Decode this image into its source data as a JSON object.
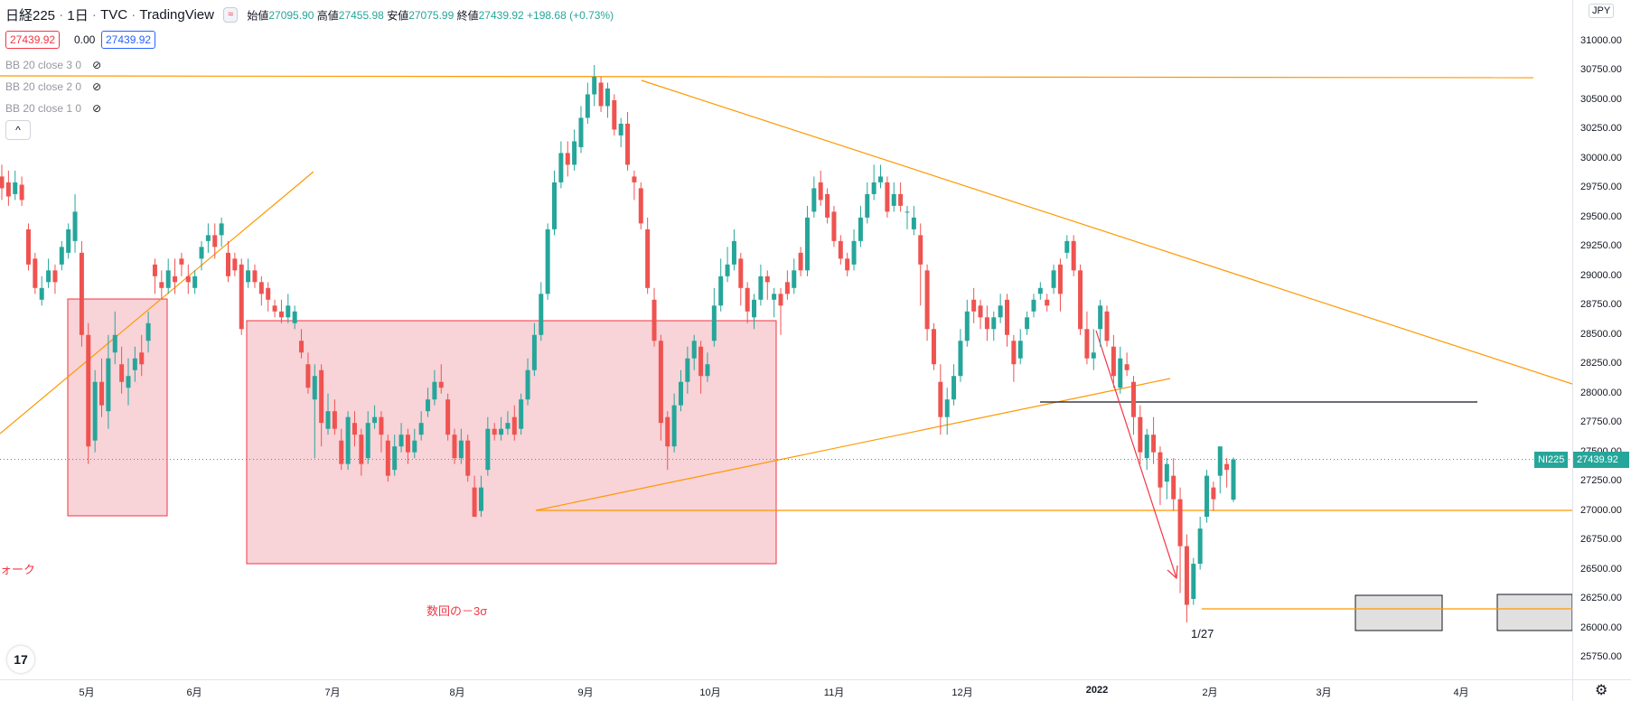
{
  "header": {
    "symbol": "日経225",
    "interval": "1日",
    "exchange": "TVC",
    "source": "TradingView",
    "badge": "≈",
    "open_label": "始値",
    "open": "27095.90",
    "high_label": "高値",
    "high": "27455.98",
    "low_label": "安値",
    "low": "27075.99",
    "close_label": "終値",
    "close": "27439.92",
    "change": "+198.68 (+0.73%)"
  },
  "values_row": {
    "left": "27439.92",
    "mid": "0.00",
    "right": "27439.92"
  },
  "indicators": [
    "BB 20 close 3 0",
    "BB 20 close 2 0",
    "BB 20 close 1 0"
  ],
  "collapse_icon": "^",
  "currency": "JPY",
  "price_tag": {
    "symbol": "NI225",
    "value": "27439.92"
  },
  "price_ticks": [
    "31000.00",
    "30750.00",
    "30500.00",
    "30250.00",
    "30000.00",
    "29750.00",
    "29500.00",
    "29250.00",
    "29000.00",
    "28750.00",
    "28500.00",
    "28250.00",
    "28000.00",
    "27750.00",
    "27500.00",
    "27250.00",
    "27000.00",
    "26750.00",
    "26500.00",
    "26250.00",
    "26000.00",
    "25750.00"
  ],
  "time_ticks": [
    "5月",
    "6月",
    "7月",
    "8月",
    "9月",
    "10月",
    "11月",
    "12月",
    "2022",
    "2月",
    "3月",
    "4月"
  ],
  "annotations": {
    "left_text": "ォーク",
    "sigma_text": "数回の－3σ",
    "date_text": "1/27"
  },
  "logo": "17",
  "colors": {
    "up": "#26a69a",
    "down": "#ef5350",
    "trend": "#ff9800",
    "zone_fill": "#f8d3d8",
    "zone_border": "#f23645"
  },
  "chart_data": {
    "type": "candlestick",
    "y_range": [
      25700,
      31150
    ],
    "candles": [
      [
        29850,
        29750,
        29950,
        29650
      ],
      [
        29800,
        29680,
        29900,
        29600
      ],
      [
        29700,
        29800,
        29900,
        29650
      ],
      [
        29780,
        29650,
        29850,
        29600
      ],
      [
        29400,
        29100,
        29450,
        29050
      ],
      [
        29150,
        28900,
        29200,
        28850
      ],
      [
        28800,
        28900,
        29000,
        28750
      ],
      [
        28950,
        29050,
        29150,
        28900
      ],
      [
        29050,
        28950,
        29100,
        28850
      ],
      [
        29100,
        29250,
        29300,
        29050
      ],
      [
        29200,
        29400,
        29450,
        29150
      ],
      [
        29300,
        29550,
        29700,
        29200
      ],
      [
        29200,
        28500,
        29300,
        28400
      ],
      [
        28500,
        27550,
        28600,
        27400
      ],
      [
        27600,
        28100,
        28200,
        27500
      ],
      [
        28100,
        27900,
        28300,
        27800
      ],
      [
        27850,
        28300,
        28500,
        27700
      ],
      [
        28350,
        28500,
        28700,
        28250
      ],
      [
        28250,
        28100,
        28400,
        28000
      ],
      [
        28050,
        28150,
        28300,
        27900
      ],
      [
        28200,
        28300,
        28400,
        28100
      ],
      [
        28350,
        28250,
        28500,
        28150
      ],
      [
        28450,
        28600,
        28700,
        28350
      ],
      [
        29100,
        29000,
        29150,
        28850
      ],
      [
        28950,
        28900,
        29050,
        28800
      ],
      [
        28900,
        29050,
        29150,
        28850
      ],
      [
        29000,
        28950,
        29150,
        28850
      ],
      [
        29150,
        29100,
        29200,
        29000
      ],
      [
        29000,
        28950,
        29100,
        28850
      ],
      [
        28900,
        29000,
        29050,
        28850
      ],
      [
        29150,
        29250,
        29300,
        29050
      ],
      [
        29300,
        29350,
        29450,
        29200
      ],
      [
        29350,
        29250,
        29450,
        29150
      ],
      [
        29350,
        29450,
        29500,
        29250
      ],
      [
        29200,
        29000,
        29300,
        28950
      ],
      [
        29150,
        29050,
        29200,
        29000
      ],
      [
        29100,
        28550,
        29150,
        28500
      ],
      [
        28950,
        29050,
        29150,
        28900
      ],
      [
        29050,
        28950,
        29100,
        28900
      ],
      [
        28950,
        28850,
        29000,
        28750
      ],
      [
        28900,
        28800,
        28950,
        28700
      ],
      [
        28750,
        28700,
        28800,
        28650
      ],
      [
        28700,
        28650,
        28800,
        28600
      ],
      [
        28650,
        28750,
        28850,
        28600
      ],
      [
        28600,
        28700,
        28750,
        28550
      ],
      [
        28450,
        28350,
        28550,
        28300
      ],
      [
        28250,
        28050,
        28350,
        28000
      ],
      [
        27950,
        28150,
        28250,
        27450
      ],
      [
        28200,
        27750,
        28250,
        27550
      ],
      [
        27700,
        27850,
        28000,
        27650
      ],
      [
        27850,
        27700,
        27950,
        27650
      ],
      [
        27600,
        27400,
        27700,
        27350
      ],
      [
        27400,
        27800,
        27850,
        27350
      ],
      [
        27750,
        27650,
        27850,
        27550
      ],
      [
        27650,
        27400,
        27700,
        27300
      ],
      [
        27450,
        27750,
        27850,
        27400
      ],
      [
        27750,
        27800,
        27900,
        27700
      ],
      [
        27800,
        27650,
        27850,
        27500
      ],
      [
        27600,
        27300,
        27650,
        27250
      ],
      [
        27350,
        27550,
        27650,
        27300
      ],
      [
        27550,
        27650,
        27750,
        27500
      ],
      [
        27650,
        27500,
        27700,
        27400
      ],
      [
        27500,
        27600,
        27700,
        27450
      ],
      [
        27650,
        27750,
        27850,
        27600
      ],
      [
        27850,
        27950,
        28050,
        27800
      ],
      [
        27950,
        28100,
        28200,
        27900
      ],
      [
        28100,
        28050,
        28250,
        28000
      ],
      [
        27950,
        27650,
        28000,
        27600
      ],
      [
        27650,
        27450,
        27700,
        27400
      ],
      [
        27450,
        27600,
        27700,
        27400
      ],
      [
        27600,
        27300,
        27650,
        27250
      ],
      [
        27200,
        26950,
        27300,
        26950
      ],
      [
        27000,
        27200,
        27300,
        26950
      ],
      [
        27350,
        27700,
        27800,
        27300
      ],
      [
        27700,
        27650,
        27750,
        27600
      ],
      [
        27650,
        27700,
        27800,
        27600
      ],
      [
        27700,
        27750,
        27850,
        27650
      ],
      [
        27800,
        27650,
        27900,
        27600
      ],
      [
        27700,
        27950,
        28000,
        27650
      ],
      [
        27950,
        28200,
        28300,
        27900
      ],
      [
        28200,
        28500,
        28600,
        28150
      ],
      [
        28500,
        28850,
        28950,
        28450
      ],
      [
        28850,
        29400,
        29450,
        28800
      ],
      [
        29400,
        29800,
        29900,
        29350
      ],
      [
        29800,
        30050,
        30150,
        29750
      ],
      [
        30050,
        29950,
        30150,
        29850
      ],
      [
        29950,
        30150,
        30250,
        29900
      ],
      [
        30100,
        30350,
        30450,
        30050
      ],
      [
        30350,
        30550,
        30650,
        30300
      ],
      [
        30550,
        30700,
        30800,
        30450
      ],
      [
        30650,
        30450,
        30700,
        30400
      ],
      [
        30450,
        30600,
        30650,
        30350
      ],
      [
        30500,
        30250,
        30550,
        30200
      ],
      [
        30200,
        30300,
        30350,
        30100
      ],
      [
        30300,
        29950,
        30400,
        29900
      ],
      [
        29850,
        29800,
        29900,
        29650
      ],
      [
        29750,
        29450,
        29800,
        29400
      ],
      [
        29400,
        28900,
        29500,
        28850
      ],
      [
        28800,
        28450,
        28900,
        28400
      ],
      [
        28450,
        27750,
        28500,
        27600
      ],
      [
        27800,
        27550,
        27850,
        27350
      ],
      [
        27550,
        27900,
        28000,
        27500
      ],
      [
        27900,
        28100,
        28200,
        27850
      ],
      [
        28100,
        28300,
        28400,
        28000
      ],
      [
        28300,
        28450,
        28500,
        28200
      ],
      [
        28400,
        28150,
        28450,
        28000
      ],
      [
        28150,
        28250,
        28350,
        28100
      ],
      [
        28450,
        28750,
        28900,
        28400
      ],
      [
        28750,
        29000,
        29150,
        28700
      ],
      [
        29000,
        29100,
        29250,
        28950
      ],
      [
        29100,
        29300,
        29400,
        29050
      ],
      [
        29150,
        28900,
        29200,
        28750
      ],
      [
        28900,
        28700,
        28950,
        28600
      ],
      [
        28650,
        28800,
        28850,
        28550
      ],
      [
        28800,
        29000,
        29100,
        28750
      ],
      [
        29000,
        28950,
        29050,
        28800
      ],
      [
        28800,
        28850,
        28900,
        28650
      ],
      [
        28850,
        28750,
        28900,
        28500
      ],
      [
        28950,
        28850,
        29050,
        28800
      ],
      [
        28900,
        29050,
        29150,
        28850
      ],
      [
        29200,
        29050,
        29250,
        29000
      ],
      [
        29050,
        29500,
        29600,
        29000
      ],
      [
        29550,
        29750,
        29850,
        29500
      ],
      [
        29800,
        29650,
        29900,
        29600
      ],
      [
        29700,
        29500,
        29750,
        29450
      ],
      [
        29550,
        29300,
        29600,
        29250
      ],
      [
        29300,
        29150,
        29350,
        29100
      ],
      [
        29150,
        29050,
        29200,
        29000
      ],
      [
        29100,
        29300,
        29400,
        29050
      ],
      [
        29300,
        29500,
        29600,
        29250
      ],
      [
        29500,
        29700,
        29800,
        29450
      ],
      [
        29700,
        29800,
        29950,
        29650
      ],
      [
        29800,
        29850,
        29950,
        29750
      ],
      [
        29800,
        29550,
        29850,
        29500
      ],
      [
        29600,
        29700,
        29800,
        29550
      ],
      [
        29700,
        29600,
        29800,
        29550
      ],
      [
        29550,
        29550,
        29600,
        29400
      ],
      [
        29400,
        29500,
        29600,
        29350
      ],
      [
        29350,
        29100,
        29450,
        28750
      ],
      [
        29050,
        28550,
        29100,
        28450
      ],
      [
        28550,
        28250,
        28600,
        28200
      ],
      [
        28100,
        27800,
        28250,
        27650
      ],
      [
        27800,
        27950,
        28050,
        27650
      ],
      [
        27950,
        28150,
        28250,
        27900
      ],
      [
        28150,
        28450,
        28550,
        28100
      ],
      [
        28450,
        28700,
        28800,
        28400
      ],
      [
        28800,
        28700,
        28900,
        28600
      ],
      [
        28750,
        28650,
        28800,
        28550
      ],
      [
        28650,
        28550,
        28750,
        28450
      ],
      [
        28550,
        28650,
        28700,
        28450
      ],
      [
        28650,
        28750,
        28850,
        28600
      ],
      [
        28800,
        28500,
        28850,
        28400
      ],
      [
        28450,
        28250,
        28500,
        28100
      ],
      [
        28300,
        28450,
        28550,
        28250
      ],
      [
        28550,
        28650,
        28700,
        28500
      ],
      [
        28700,
        28800,
        28850,
        28650
      ],
      [
        28850,
        28900,
        28950,
        28800
      ],
      [
        28800,
        28750,
        28850,
        28700
      ],
      [
        28900,
        29050,
        29100,
        28850
      ],
      [
        29100,
        28850,
        29150,
        28700
      ],
      [
        29200,
        29300,
        29350,
        29150
      ],
      [
        29300,
        29050,
        29350,
        29000
      ],
      [
        29050,
        28550,
        29100,
        28500
      ],
      [
        28550,
        28300,
        28700,
        28250
      ],
      [
        28300,
        28350,
        28550,
        28200
      ],
      [
        28550,
        28750,
        28800,
        28400
      ],
      [
        28700,
        28450,
        28750,
        28400
      ],
      [
        28400,
        28150,
        28500,
        28050
      ],
      [
        28050,
        28300,
        28400,
        28000
      ],
      [
        28250,
        28200,
        28350,
        28150
      ],
      [
        28100,
        27800,
        28150,
        27650
      ],
      [
        27800,
        27500,
        27900,
        27400
      ],
      [
        27450,
        27650,
        27700,
        27350
      ],
      [
        27650,
        27500,
        27800,
        27400
      ],
      [
        27500,
        27200,
        27550,
        27050
      ],
      [
        27250,
        27400,
        27450,
        27100
      ],
      [
        27300,
        27100,
        27450,
        27000
      ],
      [
        27100,
        26700,
        27200,
        26300
      ],
      [
        26700,
        26200,
        26800,
        26050
      ],
      [
        26250,
        26550,
        26600,
        26200
      ],
      [
        26550,
        26850,
        26950,
        26500
      ],
      [
        26950,
        27300,
        27350,
        26900
      ],
      [
        27200,
        27100,
        27250,
        27000
      ],
      [
        27300,
        27550,
        27550,
        27150
      ],
      [
        27400,
        27350,
        27450,
        27200
      ],
      [
        27096,
        27440,
        27456,
        27076
      ]
    ],
    "horizontal_levels": [
      27000,
      26175,
      27932,
      30750
    ],
    "current_price": 27439.92
  }
}
